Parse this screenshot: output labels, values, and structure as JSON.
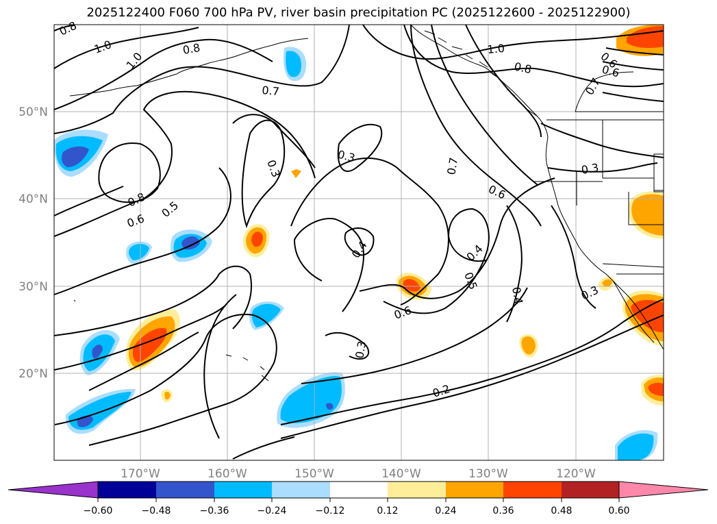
{
  "title": "2025122400 F060 700 hPa PV, river basin precipitation PC (2025122600 - 2025122900)",
  "map": {
    "lon_range": [
      -180,
      -110
    ],
    "lat_range": [
      10,
      60
    ],
    "lat_ticks": [
      {
        "value": 50,
        "label": "50°N"
      },
      {
        "value": 40,
        "label": "40°N"
      },
      {
        "value": 30,
        "label": "30°N"
      },
      {
        "value": 20,
        "label": "20°N"
      }
    ],
    "lon_ticks": [
      {
        "value": -170,
        "label": "170°W"
      },
      {
        "value": -160,
        "label": "160°W"
      },
      {
        "value": -150,
        "label": "150°W"
      },
      {
        "value": -140,
        "label": "140°W"
      },
      {
        "value": -130,
        "label": "130°W"
      },
      {
        "value": -120,
        "label": "120°W"
      }
    ],
    "grid": true
  },
  "contour_labels": [
    "0.8",
    "1.0",
    "1.0",
    "0.8",
    "0.7",
    "1.0",
    "0.8",
    "0.6",
    "0.6",
    "0.7",
    "0.3",
    "0.3",
    "0.8",
    "0.6",
    "0.5",
    "0.7",
    "0.6",
    "0.3",
    "0.4",
    "0.4",
    "0.5",
    "0.4",
    "0.3",
    "0.6",
    "0.3",
    "0.2"
  ],
  "colorbar": {
    "colors": [
      "#9933cc",
      "#000099",
      "#3355cc",
      "#00bbff",
      "#aaddff",
      "#ffffff",
      "#ffee99",
      "#ffa500",
      "#ff4400",
      "#b22222",
      "#ff88aa"
    ],
    "tick_labels": [
      "−0.60",
      "−0.48",
      "−0.36",
      "−0.24",
      "−0.12",
      "0.12",
      "0.24",
      "0.36",
      "0.48",
      "0.60"
    ]
  }
}
